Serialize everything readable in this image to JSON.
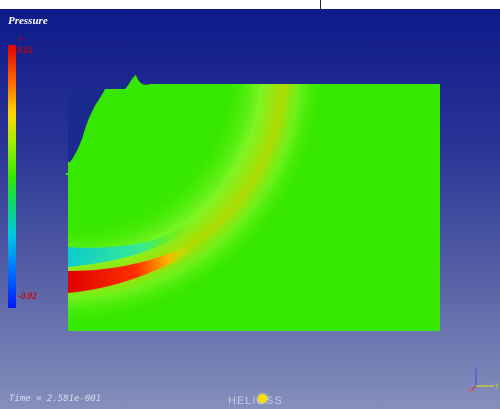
{
  "viewer": {
    "title": "Pressure",
    "time_label": "Time = 2.581e-001",
    "logo_text": "HELIOSS"
  },
  "legend": {
    "marker": ">",
    "max_label": "0.02",
    "min_label": "-0.02"
  },
  "orientation": {
    "z_label": "Z",
    "y_label": "Y",
    "x_label": "X"
  },
  "colors": {
    "background_top": "#0e1a8a",
    "background_bottom": "#8590bc",
    "field_base": "#36e800",
    "high_pressure": "#e00000",
    "low_pressure": "#00c8e0"
  }
}
